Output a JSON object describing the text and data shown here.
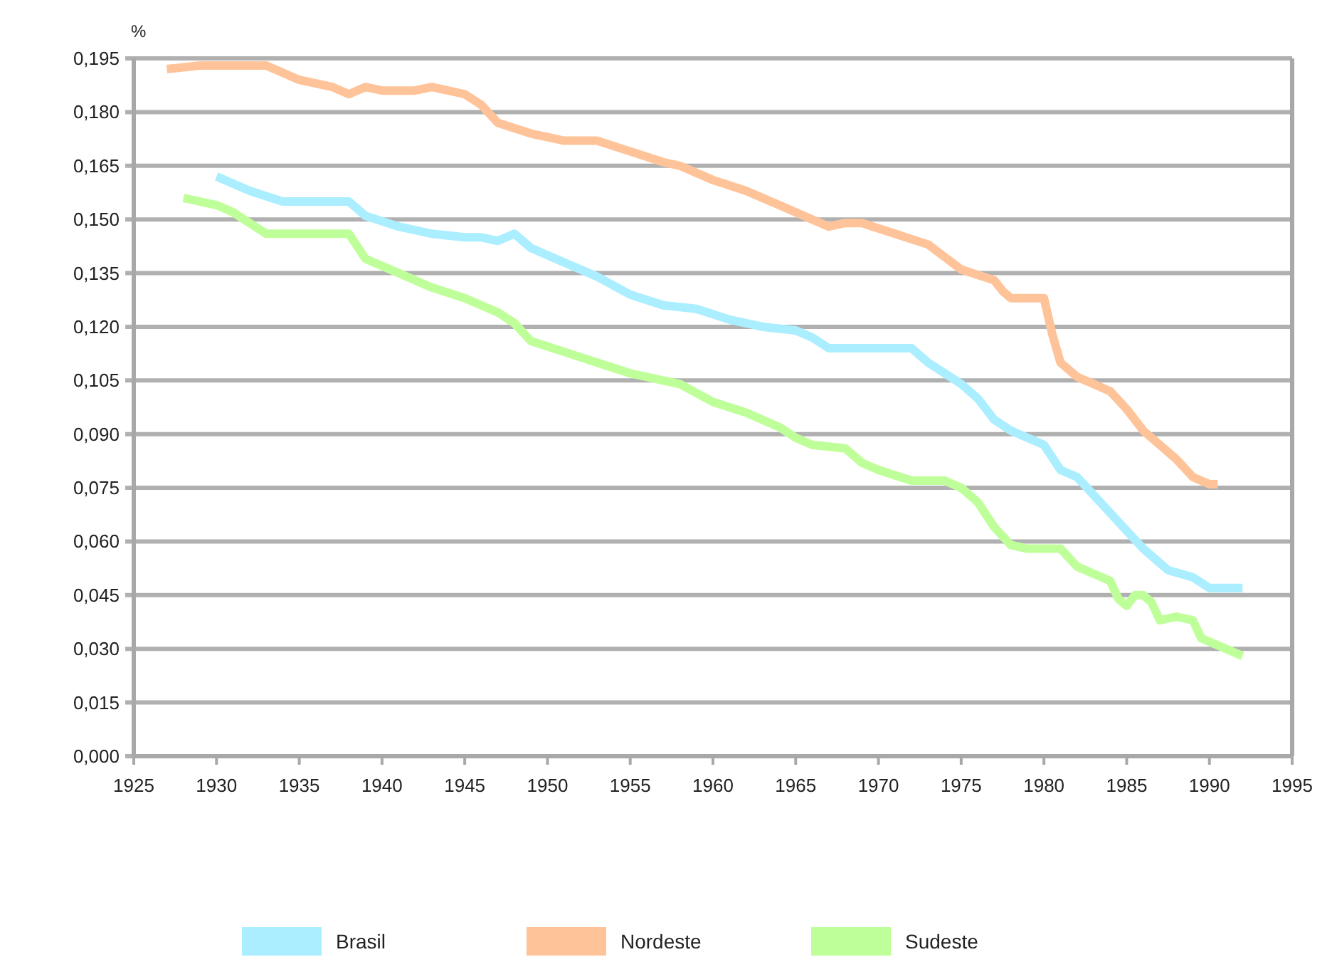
{
  "chart_data": {
    "type": "line",
    "ylabel": "%",
    "xlim": [
      1925,
      1995
    ],
    "xticks": [
      1925,
      1930,
      1935,
      1940,
      1945,
      1950,
      1955,
      1960,
      1965,
      1970,
      1975,
      1980,
      1985,
      1990,
      1995
    ],
    "ylim": [
      0,
      0.195
    ],
    "yticks": [
      {
        "value": 0,
        "label": "0,000"
      },
      {
        "value": 0.015,
        "label": "0,015"
      },
      {
        "value": 0.03,
        "label": "0,030"
      },
      {
        "value": 0.045,
        "label": "0,045"
      },
      {
        "value": 0.06,
        "label": "0,060"
      },
      {
        "value": 0.075,
        "label": "0,075"
      },
      {
        "value": 0.09,
        "label": "0,090"
      },
      {
        "value": 0.105,
        "label": "0,105"
      },
      {
        "value": 0.12,
        "label": "0,120"
      },
      {
        "value": 0.135,
        "label": "0,135"
      },
      {
        "value": 0.15,
        "label": "0,150"
      },
      {
        "value": 0.165,
        "label": "0,165"
      },
      {
        "value": 0.18,
        "label": "0,180"
      },
      {
        "value": 0.195,
        "label": "0,195"
      }
    ],
    "grid": "y",
    "legend": "bottom",
    "marker": "none",
    "line_style": "solid",
    "series": [
      {
        "name": "Brasil",
        "color": "#aaeeff",
        "x": [
          1930,
          1932,
          1934,
          1936,
          1938,
          1939,
          1941,
          1943,
          1945,
          1946,
          1947,
          1948,
          1949,
          1951,
          1953,
          1955,
          1957,
          1959,
          1961,
          1963,
          1965,
          1966,
          1967,
          1969,
          1972,
          1973,
          1975,
          1976,
          1977,
          1978,
          1979,
          1980,
          1981,
          1982,
          1983,
          1984,
          1985,
          1986,
          1987,
          1987.5,
          1989,
          1990,
          1992
        ],
        "values": [
          0.162,
          0.158,
          0.155,
          0.155,
          0.155,
          0.151,
          0.148,
          0.146,
          0.145,
          0.145,
          0.144,
          0.146,
          0.142,
          0.138,
          0.134,
          0.129,
          0.126,
          0.125,
          0.122,
          0.12,
          0.119,
          0.117,
          0.114,
          0.114,
          0.114,
          0.11,
          0.104,
          0.1,
          0.094,
          0.091,
          0.089,
          0.087,
          0.08,
          0.078,
          0.073,
          0.068,
          0.063,
          0.058,
          0.054,
          0.052,
          0.05,
          0.047,
          0.047
        ]
      },
      {
        "name": "Nordeste",
        "color": "#ffc399",
        "x": [
          1927,
          1929,
          1933,
          1935,
          1937,
          1938,
          1939,
          1940,
          1942,
          1943,
          1945,
          1946,
          1947,
          1949,
          1951,
          1953,
          1955,
          1957,
          1958,
          1960,
          1962,
          1964,
          1966,
          1967,
          1968,
          1969,
          1971,
          1973,
          1975,
          1977,
          1977.5,
          1978,
          1979,
          1980,
          1980.5,
          1981,
          1982,
          1983,
          1984,
          1985,
          1986,
          1987,
          1988,
          1989,
          1990,
          1990.5
        ],
        "values": [
          0.192,
          0.193,
          0.193,
          0.189,
          0.187,
          0.185,
          0.187,
          0.186,
          0.186,
          0.187,
          0.185,
          0.182,
          0.177,
          0.174,
          0.172,
          0.172,
          0.169,
          0.166,
          0.165,
          0.161,
          0.158,
          0.154,
          0.15,
          0.148,
          0.149,
          0.149,
          0.146,
          0.143,
          0.136,
          0.133,
          0.13,
          0.128,
          0.128,
          0.128,
          0.118,
          0.11,
          0.106,
          0.104,
          0.102,
          0.097,
          0.091,
          0.087,
          0.083,
          0.078,
          0.076,
          0.076
        ]
      },
      {
        "name": "Sudeste",
        "color": "#bfff99",
        "x": [
          1928,
          1930,
          1931,
          1932,
          1933,
          1935,
          1938,
          1939,
          1941,
          1943,
          1945,
          1947,
          1948,
          1949,
          1951,
          1953,
          1955,
          1957,
          1958,
          1960,
          1962,
          1964,
          1965,
          1966,
          1968,
          1969,
          1970,
          1972,
          1974,
          1975,
          1976,
          1977,
          1978,
          1979,
          1980,
          1981,
          1982,
          1983,
          1984,
          1984.5,
          1985,
          1985.5,
          1986,
          1986.5,
          1987,
          1988,
          1989,
          1989.5,
          1991,
          1992
        ],
        "values": [
          0.156,
          0.154,
          0.152,
          0.149,
          0.146,
          0.146,
          0.146,
          0.139,
          0.135,
          0.131,
          0.128,
          0.124,
          0.121,
          0.116,
          0.113,
          0.11,
          0.107,
          0.105,
          0.104,
          0.099,
          0.096,
          0.092,
          0.089,
          0.087,
          0.086,
          0.082,
          0.08,
          0.077,
          0.077,
          0.075,
          0.071,
          0.064,
          0.059,
          0.058,
          0.058,
          0.058,
          0.053,
          0.051,
          0.049,
          0.044,
          0.042,
          0.045,
          0.045,
          0.043,
          0.038,
          0.039,
          0.038,
          0.033,
          0.03,
          0.028
        ]
      }
    ]
  }
}
